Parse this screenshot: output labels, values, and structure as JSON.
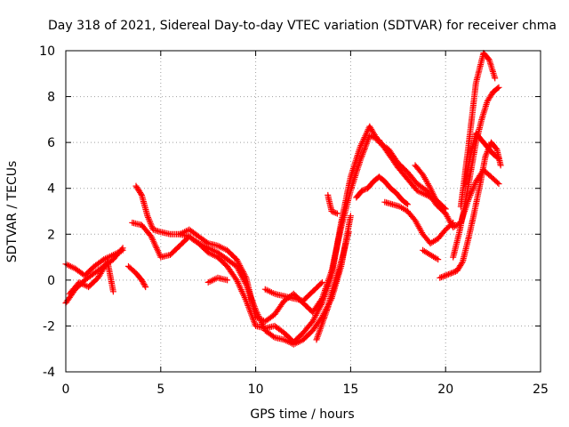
{
  "chart_data": {
    "type": "scatter",
    "title": "Day 318 of 2021, Sidereal Day-to-day VTEC variation (SDTVAR) for receiver chma",
    "xlabel": "GPS time / hours",
    "ylabel": "SDTVAR / TECUs",
    "xlim": [
      0,
      25
    ],
    "ylim": [
      -4,
      10
    ],
    "xticks": [
      0,
      5,
      10,
      15,
      20,
      25
    ],
    "yticks": [
      -4,
      -2,
      0,
      2,
      4,
      6,
      8,
      10
    ],
    "xtick_labels": [
      "0",
      "5",
      "10",
      "15",
      "20",
      "25"
    ],
    "ytick_labels": [
      "-4",
      "-2",
      "0",
      "2",
      "4",
      "6",
      "8",
      "10"
    ],
    "grid": true,
    "marker": "plus",
    "color": "#ff0000",
    "series": [
      {
        "name": "track-1",
        "x": [
          0.0,
          0.5,
          1.0,
          1.5,
          2.0,
          2.5,
          3.0
        ],
        "y": [
          0.7,
          0.5,
          0.2,
          0.6,
          0.9,
          1.1,
          1.3
        ]
      },
      {
        "name": "track-2",
        "x": [
          0.0,
          0.5,
          1.0,
          1.5,
          2.0,
          2.5,
          3.0
        ],
        "y": [
          -1.0,
          -0.4,
          0.0,
          0.3,
          0.6,
          0.9,
          1.4
        ]
      },
      {
        "name": "track-3",
        "x": [
          0.2,
          0.7,
          1.2,
          1.7,
          2.2,
          2.5
        ],
        "y": [
          -0.6,
          -0.1,
          -0.3,
          0.1,
          0.8,
          -0.5
        ]
      },
      {
        "name": "track-4",
        "x": [
          3.3,
          3.7,
          4.0,
          4.2
        ],
        "y": [
          0.6,
          0.3,
          0.0,
          -0.3
        ]
      },
      {
        "name": "track-5",
        "x": [
          3.7,
          4.0,
          4.3,
          4.6,
          5.0,
          5.5,
          6.0,
          6.5,
          7.0,
          7.5,
          8.0,
          8.5,
          9.0,
          9.5,
          10.0,
          10.5,
          11.0,
          11.5,
          12.0,
          12.5,
          13.0,
          13.5,
          14.0,
          14.5,
          15.0,
          15.5,
          16.0,
          16.5,
          17.0,
          17.5,
          18.0,
          18.5,
          19.0,
          19.5,
          20.0
        ],
        "y": [
          4.1,
          3.7,
          2.8,
          2.2,
          2.1,
          2.0,
          2.0,
          2.2,
          1.9,
          1.6,
          1.5,
          1.3,
          0.9,
          0.1,
          -1.6,
          -1.8,
          -1.5,
          -0.9,
          -0.6,
          -1.0,
          -1.4,
          -0.8,
          0.4,
          2.3,
          3.9,
          5.2,
          6.3,
          6.1,
          5.5,
          4.9,
          4.4,
          3.9,
          3.7,
          3.5,
          3.1
        ]
      },
      {
        "name": "track-6",
        "x": [
          3.5,
          4.0,
          4.5,
          5.0,
          5.5,
          6.0,
          6.5,
          7.0,
          7.5,
          8.0,
          8.5,
          9.0,
          9.5,
          10.0,
          10.5,
          11.0,
          11.5,
          12.0,
          12.5,
          13.0,
          13.5,
          14.0,
          14.5,
          15.0,
          15.5,
          16.0,
          16.5,
          17.0,
          17.5,
          18.0,
          18.5,
          19.0,
          19.5,
          20.0
        ],
        "y": [
          2.5,
          2.4,
          1.9,
          1.0,
          1.1,
          1.5,
          1.9,
          1.6,
          1.2,
          1.0,
          0.6,
          0.0,
          -0.9,
          -2.0,
          -2.1,
          -2.0,
          -2.3,
          -2.7,
          -2.3,
          -1.8,
          -1.0,
          0.2,
          2.5,
          4.5,
          5.8,
          6.7,
          6.0,
          5.7,
          5.1,
          4.7,
          4.2,
          3.9,
          3.3,
          2.9
        ]
      },
      {
        "name": "track-7",
        "x": [
          6.0,
          6.5,
          7.0,
          7.5,
          8.0,
          8.5,
          9.0,
          9.5,
          10.0,
          10.5,
          11.0,
          11.5,
          12.0,
          12.5,
          13.0,
          13.5,
          14.0,
          14.5,
          15.0
        ],
        "y": [
          2.0,
          1.9,
          1.6,
          1.4,
          1.2,
          0.9,
          0.6,
          -0.2,
          -1.3,
          -2.2,
          -2.5,
          -2.6,
          -2.8,
          -2.6,
          -2.2,
          -1.6,
          -0.8,
          0.6,
          2.8
        ]
      },
      {
        "name": "track-8",
        "x": [
          7.5,
          8.0,
          8.5
        ],
        "y": [
          -0.1,
          0.1,
          0.0
        ]
      },
      {
        "name": "track-9",
        "x": [
          10.5,
          11.0,
          11.5,
          12.0,
          12.5,
          13.0,
          13.5
        ],
        "y": [
          -0.4,
          -0.6,
          -0.7,
          -0.8,
          -0.9,
          -0.5,
          -0.1
        ]
      },
      {
        "name": "track-10",
        "x": [
          13.2,
          13.5,
          13.8,
          14.0,
          14.3,
          14.6,
          14.9
        ],
        "y": [
          -2.6,
          -1.9,
          -1.2,
          -0.6,
          0.2,
          1.1,
          2.1
        ]
      },
      {
        "name": "track-11",
        "x": [
          13.8,
          14.0,
          14.3
        ],
        "y": [
          3.7,
          3.0,
          2.9
        ]
      },
      {
        "name": "track-12",
        "x": [
          15.3,
          15.6,
          15.9,
          16.2,
          16.5,
          16.8,
          17.1,
          17.4,
          17.7,
          18.0
        ],
        "y": [
          3.6,
          3.9,
          4.0,
          4.3,
          4.5,
          4.3,
          4.0,
          3.8,
          3.5,
          3.3
        ]
      },
      {
        "name": "track-13",
        "x": [
          16.8,
          17.2,
          17.6,
          18.0,
          18.4,
          18.8,
          19.2,
          19.6,
          20.0,
          20.4
        ],
        "y": [
          3.4,
          3.3,
          3.2,
          3.0,
          2.6,
          2.0,
          1.6,
          1.8,
          2.2,
          2.5
        ]
      },
      {
        "name": "track-14",
        "x": [
          18.4,
          18.8,
          19.2,
          19.6,
          20.0,
          20.4,
          20.8,
          21.2,
          21.6,
          22.0,
          22.4,
          22.8
        ],
        "y": [
          5.0,
          4.6,
          4.0,
          3.3,
          2.9,
          2.3,
          2.5,
          3.5,
          4.3,
          4.8,
          4.5,
          4.2
        ]
      },
      {
        "name": "track-15",
        "x": [
          18.8,
          19.2,
          19.6
        ],
        "y": [
          1.3,
          1.1,
          0.9
        ]
      },
      {
        "name": "track-16",
        "x": [
          19.7,
          20.0,
          20.3,
          20.6,
          20.9,
          21.2,
          21.5,
          21.8,
          22.1,
          22.4,
          22.7,
          22.9
        ],
        "y": [
          0.1,
          0.2,
          0.3,
          0.4,
          0.8,
          1.8,
          2.9,
          4.1,
          5.4,
          6.0,
          5.7,
          5.0
        ]
      },
      {
        "name": "track-17",
        "x": [
          20.4,
          20.7,
          21.0,
          21.3,
          21.6,
          21.9,
          22.2,
          22.5,
          22.8
        ],
        "y": [
          1.0,
          2.0,
          3.2,
          4.6,
          6.0,
          7.0,
          7.8,
          8.2,
          8.4
        ]
      },
      {
        "name": "track-18",
        "x": [
          21.0,
          21.3,
          21.6,
          21.9,
          22.2,
          22.5,
          22.8
        ],
        "y": [
          4.2,
          5.4,
          6.4,
          6.1,
          5.8,
          5.5,
          5.3
        ]
      },
      {
        "name": "track-19",
        "x": [
          20.8,
          21.2,
          21.6,
          22.0,
          22.3,
          22.6
        ],
        "y": [
          3.2,
          5.8,
          8.6,
          9.9,
          9.6,
          8.8
        ]
      }
    ]
  }
}
